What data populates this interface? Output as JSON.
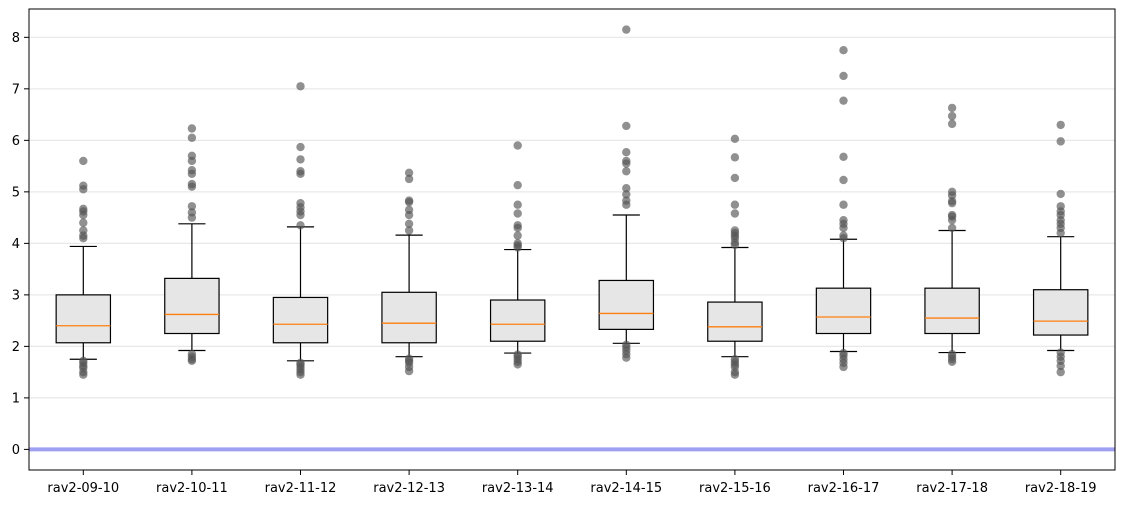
{
  "chart_data": {
    "type": "box",
    "title": "",
    "xlabel": "",
    "ylabel": "",
    "ylim": [
      -0.4,
      8.55
    ],
    "yticks": [
      0,
      1,
      2,
      3,
      4,
      5,
      6,
      7,
      8
    ],
    "grid": "horizontal light",
    "reference_line": {
      "y": 0,
      "color": "#a0a0f0"
    },
    "colors": {
      "box_fill": "#e6e6e6",
      "median": "#ff7f0e",
      "outlier": "#555555",
      "frame": "#000000"
    },
    "boxes": [
      {
        "label": "rav2-09-10",
        "whislo": 1.75,
        "q1": 2.07,
        "med": 2.4,
        "q3": 3.0,
        "whishi": 3.94,
        "fliers": [
          1.45,
          1.5,
          1.58,
          1.62,
          1.68,
          1.72,
          4.1,
          4.15,
          4.25,
          4.4,
          4.55,
          4.62,
          4.67,
          5.05,
          5.12,
          5.6
        ]
      },
      {
        "label": "rav2-10-11",
        "whislo": 1.92,
        "q1": 2.25,
        "med": 2.62,
        "q3": 3.32,
        "whishi": 4.38,
        "fliers": [
          1.72,
          1.75,
          1.8,
          1.85,
          4.5,
          4.6,
          4.72,
          5.1,
          5.15,
          5.35,
          5.42,
          5.6,
          5.7,
          6.05,
          6.23
        ]
      },
      {
        "label": "rav2-11-12",
        "whislo": 1.72,
        "q1": 2.07,
        "med": 2.43,
        "q3": 2.95,
        "whishi": 4.32,
        "fliers": [
          1.45,
          1.5,
          1.55,
          1.6,
          1.65,
          1.68,
          4.35,
          4.55,
          4.62,
          4.7,
          4.78,
          5.35,
          5.4,
          5.63,
          5.87,
          7.05
        ]
      },
      {
        "label": "rav2-12-13",
        "whislo": 1.8,
        "q1": 2.07,
        "med": 2.45,
        "q3": 3.05,
        "whishi": 4.16,
        "fliers": [
          1.52,
          1.6,
          1.68,
          1.72,
          1.76,
          4.25,
          4.38,
          4.55,
          4.65,
          4.8,
          4.83,
          5.25,
          5.37
        ]
      },
      {
        "label": "rav2-13-14",
        "whislo": 1.87,
        "q1": 2.1,
        "med": 2.43,
        "q3": 2.9,
        "whishi": 3.88,
        "fliers": [
          1.65,
          1.7,
          1.75,
          1.8,
          1.84,
          3.92,
          3.96,
          4.0,
          4.15,
          4.3,
          4.35,
          4.58,
          4.75,
          5.13,
          5.9
        ]
      },
      {
        "label": "rav2-14-15",
        "whislo": 2.06,
        "q1": 2.33,
        "med": 2.64,
        "q3": 3.28,
        "whishi": 4.55,
        "fliers": [
          1.78,
          1.85,
          1.92,
          1.98,
          2.03,
          4.75,
          4.83,
          4.95,
          5.07,
          5.4,
          5.55,
          5.6,
          5.77,
          6.28,
          8.15
        ]
      },
      {
        "label": "rav2-15-16",
        "whislo": 1.8,
        "q1": 2.1,
        "med": 2.38,
        "q3": 2.86,
        "whishi": 3.92,
        "fliers": [
          1.45,
          1.5,
          1.6,
          1.65,
          1.7,
          1.75,
          3.97,
          4.02,
          4.1,
          4.15,
          4.2,
          4.25,
          4.58,
          4.75,
          5.27,
          5.67,
          6.03
        ]
      },
      {
        "label": "rav2-16-17",
        "whislo": 1.9,
        "q1": 2.25,
        "med": 2.57,
        "q3": 3.13,
        "whishi": 4.08,
        "fliers": [
          1.6,
          1.68,
          1.75,
          1.82,
          1.87,
          4.1,
          4.15,
          4.3,
          4.38,
          4.45,
          4.75,
          5.23,
          5.68,
          6.77,
          7.25,
          7.75
        ]
      },
      {
        "label": "rav2-17-18",
        "whislo": 1.88,
        "q1": 2.25,
        "med": 2.55,
        "q3": 3.13,
        "whishi": 4.25,
        "fliers": [
          1.7,
          1.75,
          1.8,
          1.85,
          4.3,
          4.45,
          4.52,
          4.55,
          4.78,
          4.82,
          4.93,
          5.0,
          6.32,
          6.47,
          6.63
        ]
      },
      {
        "label": "rav2-18-19",
        "whislo": 1.92,
        "q1": 2.22,
        "med": 2.49,
        "q3": 3.1,
        "whishi": 4.13,
        "fliers": [
          1.5,
          1.62,
          1.72,
          1.8,
          1.88,
          4.2,
          4.3,
          4.38,
          4.45,
          4.55,
          4.62,
          4.72,
          4.96,
          5.98,
          6.3
        ]
      }
    ]
  }
}
